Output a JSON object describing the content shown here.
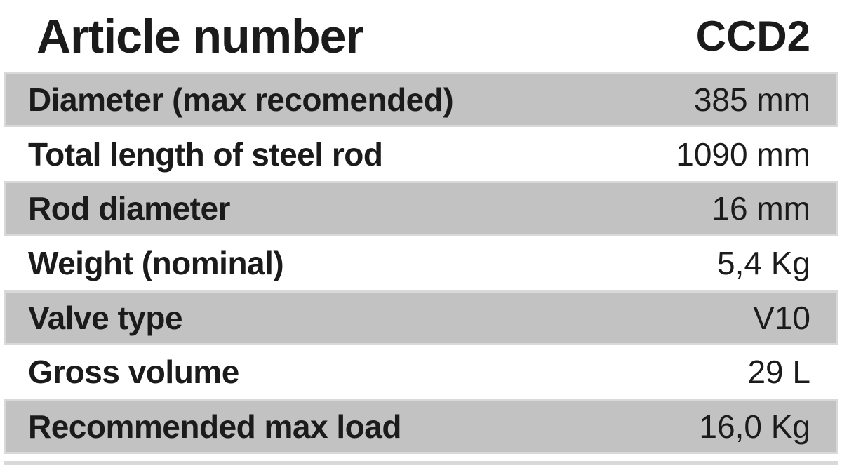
{
  "table": {
    "header": {
      "label": "Article number",
      "value": "CCD2"
    },
    "rows": [
      {
        "label": "Diameter (max recomended)",
        "value": "385 mm",
        "shaded": true
      },
      {
        "label": "Total length of steel rod",
        "value": "1090 mm",
        "shaded": false
      },
      {
        "label": "Rod diameter",
        "value": "16 mm",
        "shaded": true
      },
      {
        "label": "Weight (nominal)",
        "value": "5,4 Kg",
        "shaded": false
      },
      {
        "label": "Valve type",
        "value": "V10",
        "shaded": true
      },
      {
        "label": "Gross volume",
        "value": "29 L",
        "shaded": false
      },
      {
        "label": "Recommended max load",
        "value": "16,0 Kg",
        "shaded": true
      }
    ],
    "colors": {
      "shaded_bg": "#c2c2c2",
      "shaded_edge": "#d9d9d9",
      "text": "#1b1b1b",
      "background": "#ffffff"
    }
  }
}
